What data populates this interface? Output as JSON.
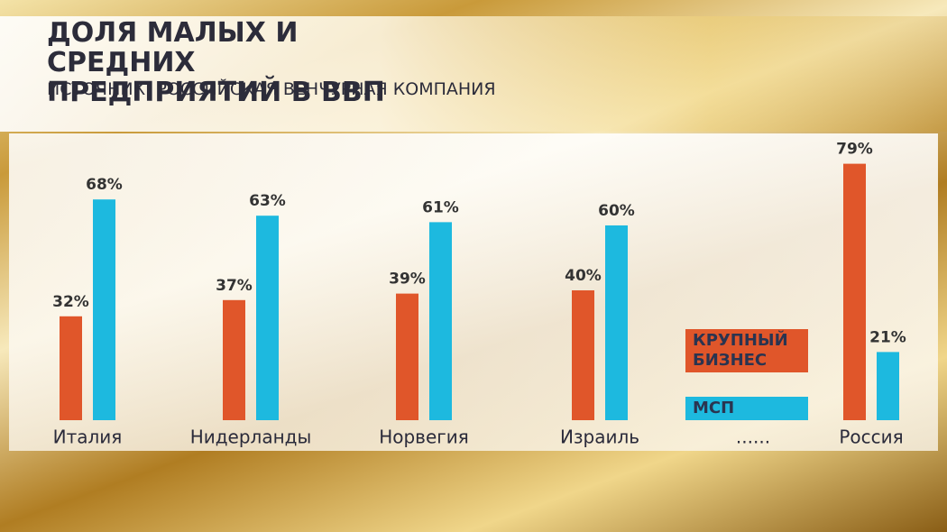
{
  "chart_data": {
    "type": "bar",
    "title": "ДОЛЯ МАЛЫХ И СРЕДНИХ ПРЕДПРИЯТИЙ В ВВП",
    "subtitle": "ИСТОЧНИК: РОССИЙСКАЯ ВЕНЧУРНАЯ КОМПАНИЯ",
    "categories": [
      "Италия",
      "Нидерланды",
      "Норвегия",
      "Израиль",
      "......",
      "Россия"
    ],
    "series": [
      {
        "name": "КРУПНЫЙ БИЗНЕС",
        "color": "#e0562a",
        "values": [
          32,
          37,
          39,
          40,
          null,
          79
        ],
        "value_labels": [
          "32%",
          "37%",
          "39%",
          "40%",
          null,
          "79%"
        ]
      },
      {
        "name": "МСП",
        "color": "#1db9df",
        "values": [
          68,
          63,
          61,
          60,
          null,
          21
        ],
        "value_labels": [
          "68%",
          "63%",
          "61%",
          "60%",
          null,
          "21%"
        ]
      }
    ]
  }
}
